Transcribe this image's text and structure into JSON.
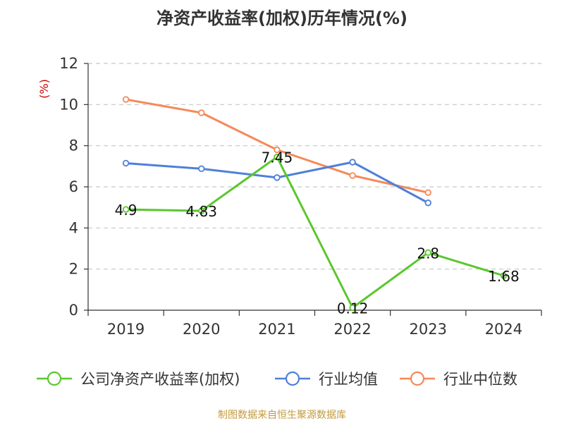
{
  "chart_data": {
    "type": "line",
    "title": "净资产收益率(加权)历年情况(%)",
    "ylabel": "(%)",
    "xlabel": "",
    "ylim": [
      0,
      12
    ],
    "yticks": [
      0,
      2,
      4,
      6,
      8,
      10,
      12
    ],
    "categories": [
      "2019",
      "2020",
      "2021",
      "2022",
      "2023",
      "2024"
    ],
    "grid": true,
    "legend_position": "bottom",
    "series": [
      {
        "name": "公司净资产收益率(加权)",
        "color": "#5ac72e",
        "values": [
          4.9,
          4.83,
          7.45,
          0.12,
          2.8,
          1.68
        ],
        "labels": [
          "4.9",
          "4.83",
          "7.45",
          "0.12",
          "2.8",
          "1.68"
        ]
      },
      {
        "name": "行业均值",
        "color": "#4f80d9",
        "values": [
          7.15,
          6.88,
          6.45,
          7.2,
          5.22,
          null
        ]
      },
      {
        "name": "行业中位数",
        "color": "#f5895a",
        "values": [
          10.25,
          9.6,
          7.8,
          6.55,
          5.72,
          null
        ]
      }
    ],
    "source": "制图数据来自恒生聚源数据库"
  }
}
